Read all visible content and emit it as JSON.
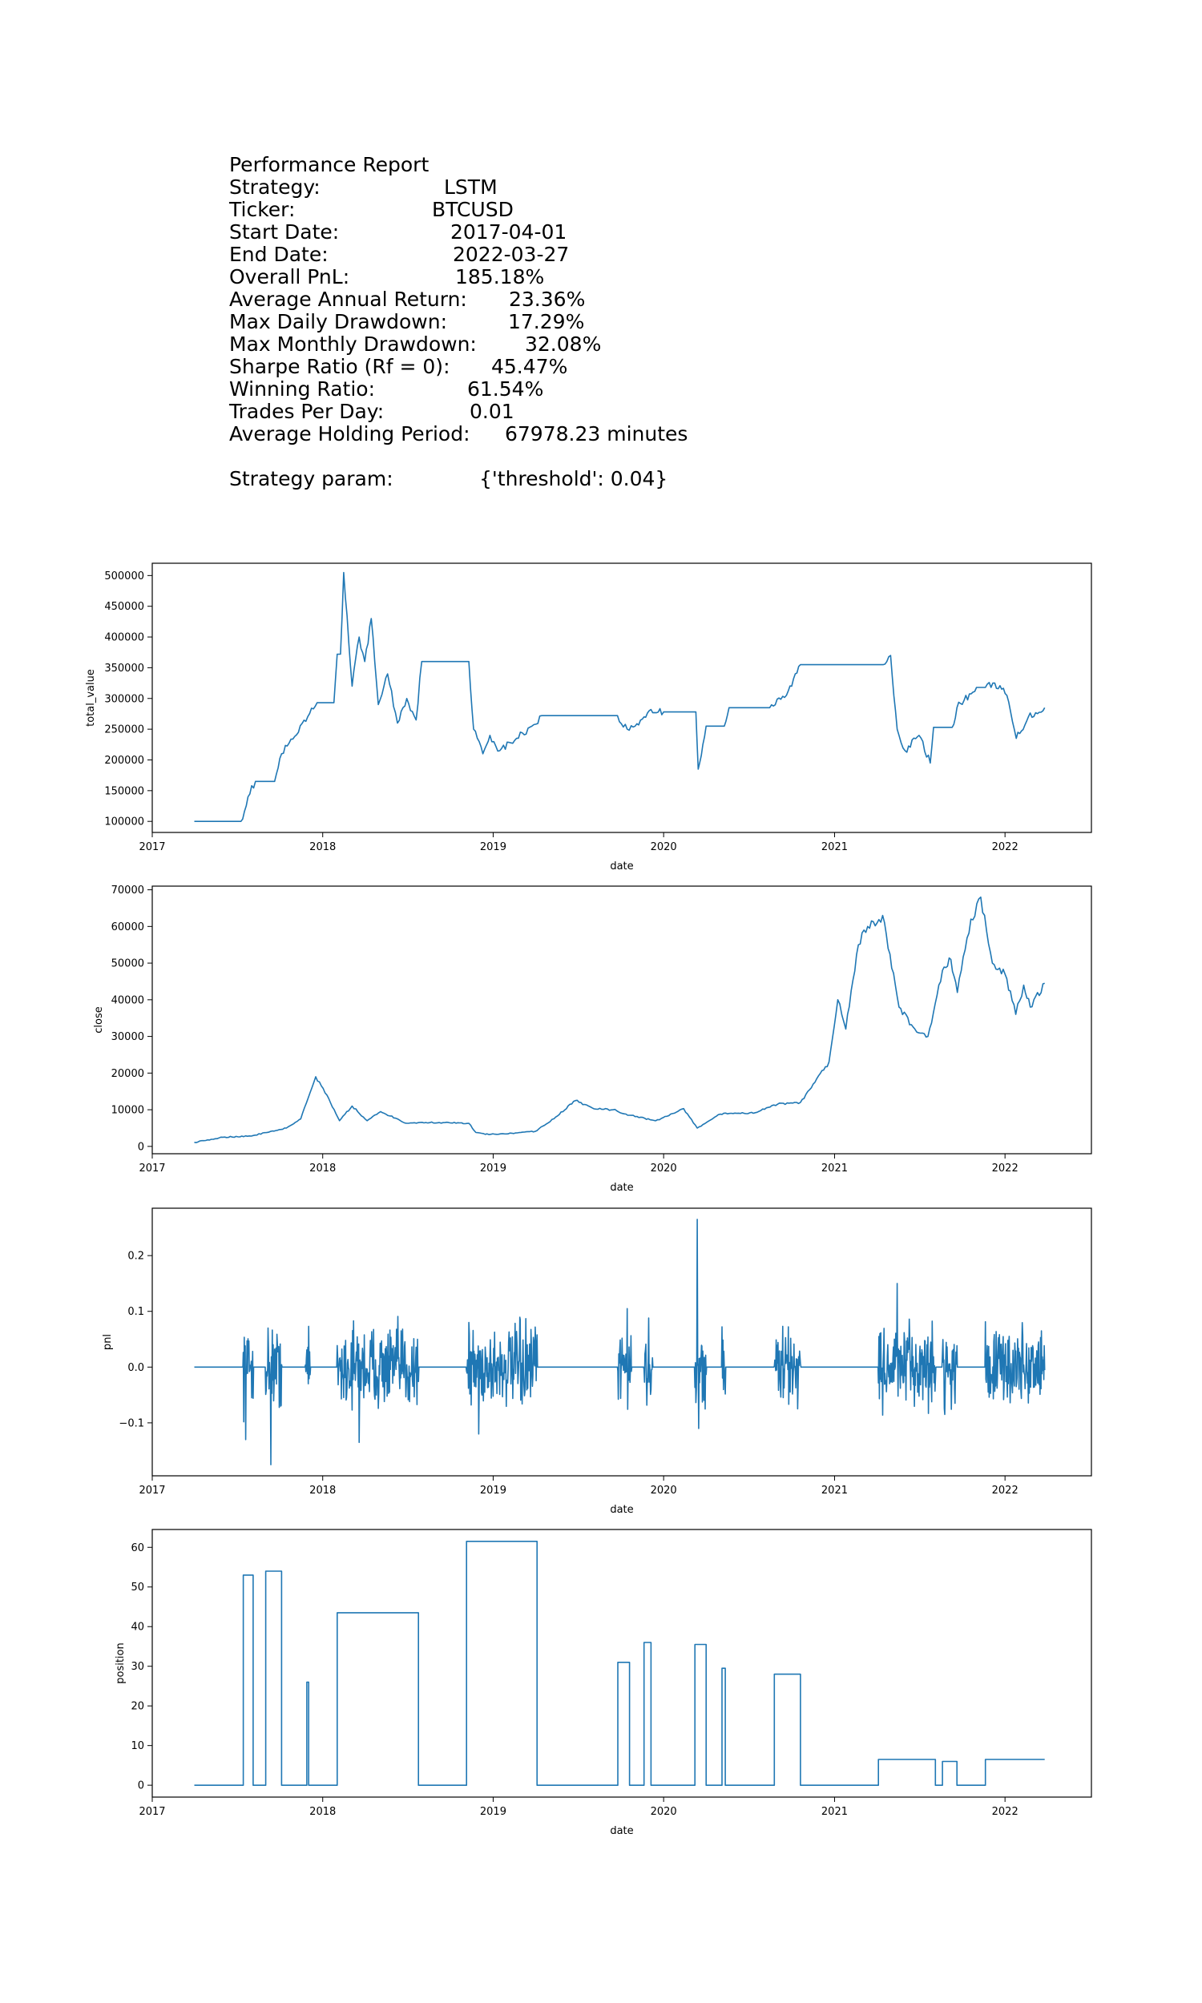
{
  "report": {
    "title": "Performance Report",
    "rows": [
      {
        "label": "Strategy:",
        "value": "LSTM"
      },
      {
        "label": "Ticker:",
        "value": "BTCUSD"
      },
      {
        "label": "Start Date:",
        "value": "2017-04-01"
      },
      {
        "label": "End Date:",
        "value": "2022-03-27"
      },
      {
        "label": "Overall PnL:",
        "value": "185.18%"
      },
      {
        "label": "Average Annual Return:",
        "value": "23.36%"
      },
      {
        "label": "Max Daily Drawdown:",
        "value": "17.29%"
      },
      {
        "label": "Max Monthly Drawdown:",
        "value": "32.08%"
      },
      {
        "label": "Sharpe Ratio (Rf = 0):",
        "value": "45.47%"
      },
      {
        "label": "Winning Ratio:",
        "value": "61.54%"
      },
      {
        "label": "Trades Per Day:",
        "value": "0.01"
      },
      {
        "label": "Average Holding Period:",
        "value": "67978.23 minutes"
      }
    ],
    "param_label": "Strategy param:",
    "param_value": "{'threshold': 0.04}"
  },
  "chart_data": [
    {
      "type": "line",
      "xlabel": "date",
      "ylabel": "total_value",
      "x_ticks": [
        "2017",
        "2018",
        "2019",
        "2020",
        "2021",
        "2022"
      ],
      "y_ticks": [
        100000,
        150000,
        200000,
        250000,
        300000,
        350000,
        400000,
        450000,
        500000
      ],
      "xlim": [
        "2017-01-01",
        "2022-07-05"
      ],
      "ylim": [
        82000,
        520000
      ],
      "line_color": "#1f77b4",
      "x": [
        "2017-04-01",
        "2017-07-10",
        "2017-07-25",
        "2017-08-10",
        "2017-09-20",
        "2017-10-05",
        "2017-11-10",
        "2017-12-20",
        "2018-01-25",
        "2018-02-01",
        "2018-02-08",
        "2018-02-15",
        "2018-03-05",
        "2018-03-20",
        "2018-04-01",
        "2018-04-15",
        "2018-04-30",
        "2018-05-20",
        "2018-06-10",
        "2018-06-30",
        "2018-07-20",
        "2018-08-01",
        "2018-11-10",
        "2018-11-20",
        "2018-12-10",
        "2018-12-25",
        "2019-01-15",
        "2019-02-20",
        "2019-03-25",
        "2019-04-15",
        "2019-09-20",
        "2019-10-15",
        "2019-11-01",
        "2019-11-20",
        "2019-12-01",
        "2020-01-01",
        "2020-03-10",
        "2020-03-15",
        "2020-03-25",
        "2020-04-01",
        "2020-05-10",
        "2020-05-20",
        "2020-08-15",
        "2020-09-20",
        "2020-10-20",
        "2021-04-01",
        "2021-04-15",
        "2021-05-01",
        "2021-05-15",
        "2021-06-01",
        "2021-07-01",
        "2021-07-25",
        "2021-08-01",
        "2021-09-10",
        "2021-09-20",
        "2021-11-01",
        "2021-11-20",
        "2021-12-10",
        "2022-01-05",
        "2022-01-25",
        "2022-02-20",
        "2022-03-27"
      ],
      "y": [
        100000,
        100000,
        140000,
        165000,
        165000,
        210000,
        245000,
        293000,
        293000,
        372000,
        372000,
        505000,
        320000,
        400000,
        360000,
        430000,
        290000,
        340000,
        260000,
        300000,
        265000,
        360000,
        360000,
        250000,
        210000,
        240000,
        215000,
        235000,
        255000,
        272000,
        272000,
        250000,
        255000,
        270000,
        280000,
        278000,
        278000,
        185000,
        225000,
        255000,
        255000,
        285000,
        285000,
        305000,
        355000,
        355000,
        355000,
        370000,
        250000,
        215000,
        240000,
        195000,
        253000,
        253000,
        285000,
        318000,
        318000,
        325000,
        305000,
        235000,
        270000,
        285000
      ]
    },
    {
      "type": "line",
      "xlabel": "date",
      "ylabel": "close",
      "x_ticks": [
        "2017",
        "2018",
        "2019",
        "2020",
        "2021",
        "2022"
      ],
      "y_ticks": [
        0,
        10000,
        20000,
        30000,
        40000,
        50000,
        60000,
        70000
      ],
      "xlim": [
        "2017-01-01",
        "2022-07-05"
      ],
      "ylim": [
        -2000,
        71000
      ],
      "line_color": "#1f77b4",
      "x": [
        "2017-04-01",
        "2017-06-01",
        "2017-08-01",
        "2017-09-15",
        "2017-10-15",
        "2017-11-15",
        "2017-12-17",
        "2018-01-10",
        "2018-02-06",
        "2018-03-05",
        "2018-04-06",
        "2018-05-05",
        "2018-06-30",
        "2018-08-10",
        "2018-09-20",
        "2018-11-10",
        "2018-11-25",
        "2018-12-15",
        "2019-02-10",
        "2019-04-01",
        "2019-05-15",
        "2019-06-26",
        "2019-08-01",
        "2019-09-15",
        "2019-10-20",
        "2019-12-15",
        "2020-02-13",
        "2020-03-13",
        "2020-05-01",
        "2020-07-15",
        "2020-09-01",
        "2020-10-20",
        "2020-11-20",
        "2020-12-20",
        "2021-01-08",
        "2021-01-25",
        "2021-02-21",
        "2021-03-13",
        "2021-04-14",
        "2021-05-19",
        "2021-06-22",
        "2021-07-20",
        "2021-08-20",
        "2021-09-07",
        "2021-09-21",
        "2021-10-20",
        "2021-11-10",
        "2021-12-05",
        "2022-01-01",
        "2022-01-24",
        "2022-02-10",
        "2022-02-24",
        "2022-03-27"
      ],
      "y": [
        1100,
        2500,
        2800,
        4200,
        5000,
        7500,
        19000,
        14000,
        7000,
        11000,
        7000,
        9500,
        6300,
        6500,
        6500,
        6300,
        3800,
        3300,
        3600,
        4100,
        8000,
        12500,
        10500,
        10000,
        8500,
        7000,
        10300,
        5000,
        8800,
        9200,
        11500,
        12000,
        17500,
        23000,
        40000,
        32000,
        55000,
        60000,
        63000,
        38000,
        32000,
        30000,
        48000,
        51000,
        42000,
        62000,
        68000,
        50000,
        47000,
        36000,
        44000,
        38000,
        44500
      ]
    },
    {
      "type": "line",
      "xlabel": "date",
      "ylabel": "pnl",
      "x_ticks": [
        "2017",
        "2018",
        "2019",
        "2020",
        "2021",
        "2022"
      ],
      "y_ticks": [
        "−0.1",
        "0.0",
        "0.1",
        "0.2"
      ],
      "xlim": [
        "2017-01-01",
        "2022-07-05"
      ],
      "ylim": [
        -0.195,
        0.285
      ],
      "line_color": "#1f77b4",
      "active_periods": [
        [
          "2017-07-15",
          "2017-08-05"
        ],
        [
          "2017-09-01",
          "2017-10-05"
        ],
        [
          "2017-11-25",
          "2017-12-05"
        ],
        [
          "2018-02-01",
          "2018-07-25"
        ],
        [
          "2018-11-05",
          "2019-04-05"
        ],
        [
          "2019-09-25",
          "2019-10-25"
        ],
        [
          "2019-11-20",
          "2019-12-08"
        ],
        [
          "2020-03-08",
          "2020-04-01"
        ],
        [
          "2020-05-05",
          "2020-05-12"
        ],
        [
          "2020-08-25",
          "2020-10-20"
        ],
        [
          "2021-04-05",
          "2021-08-05"
        ],
        [
          "2021-08-20",
          "2021-09-20"
        ],
        [
          "2021-11-20",
          "2022-03-27"
        ]
      ],
      "x": [
        "2017-04-01",
        "2017-07-20",
        "2017-09-12",
        "2018-03-20",
        "2018-11-10",
        "2018-12-01",
        "2019-10-15",
        "2020-03-13",
        "2020-03-16",
        "2021-05-15",
        "2022-03-27"
      ],
      "y": [
        0,
        -0.13,
        -0.175,
        -0.135,
        0.08,
        -0.12,
        0.105,
        0.265,
        -0.11,
        0.15,
        0
      ]
    },
    {
      "type": "line",
      "xlabel": "date",
      "ylabel": "position",
      "x_ticks": [
        "2017",
        "2018",
        "2019",
        "2020",
        "2021",
        "2022"
      ],
      "y_ticks": [
        0,
        10,
        20,
        30,
        40,
        50,
        60
      ],
      "xlim": [
        "2017-01-01",
        "2022-07-05"
      ],
      "ylim": [
        -3,
        64.5
      ],
      "line_color": "#1f77b4",
      "x": [
        "2017-04-01",
        "2017-07-15",
        "2017-07-15",
        "2017-08-05",
        "2017-08-05",
        "2017-09-01",
        "2017-09-01",
        "2017-10-05",
        "2017-10-05",
        "2017-11-28",
        "2017-11-28",
        "2017-12-02",
        "2017-12-02",
        "2018-02-01",
        "2018-02-01",
        "2018-07-25",
        "2018-07-25",
        "2018-11-05",
        "2018-11-05",
        "2019-04-05",
        "2019-04-05",
        "2019-09-25",
        "2019-09-25",
        "2019-10-20",
        "2019-10-20",
        "2019-11-20",
        "2019-11-20",
        "2019-12-05",
        "2019-12-05",
        "2020-03-08",
        "2020-03-08",
        "2020-04-01",
        "2020-04-01",
        "2020-05-05",
        "2020-05-05",
        "2020-05-12",
        "2020-05-12",
        "2020-08-25",
        "2020-08-25",
        "2020-10-20",
        "2020-10-20",
        "2021-04-05",
        "2021-04-05",
        "2021-08-05",
        "2021-08-05",
        "2021-08-20",
        "2021-08-20",
        "2021-09-20",
        "2021-09-20",
        "2021-11-20",
        "2021-11-20",
        "2022-03-27"
      ],
      "y": [
        0,
        0,
        53,
        53,
        0,
        0,
        54,
        54,
        0,
        0,
        26,
        26,
        0,
        0,
        43.5,
        43.5,
        0,
        0,
        61.5,
        61.5,
        0,
        0,
        31,
        31,
        0,
        0,
        36,
        36,
        0,
        0,
        35.5,
        35.5,
        0,
        0,
        29.5,
        29.5,
        0,
        0,
        28,
        28,
        0,
        0,
        6.5,
        6.5,
        0,
        0,
        6,
        6,
        0,
        0,
        6.5,
        6.5
      ]
    }
  ]
}
